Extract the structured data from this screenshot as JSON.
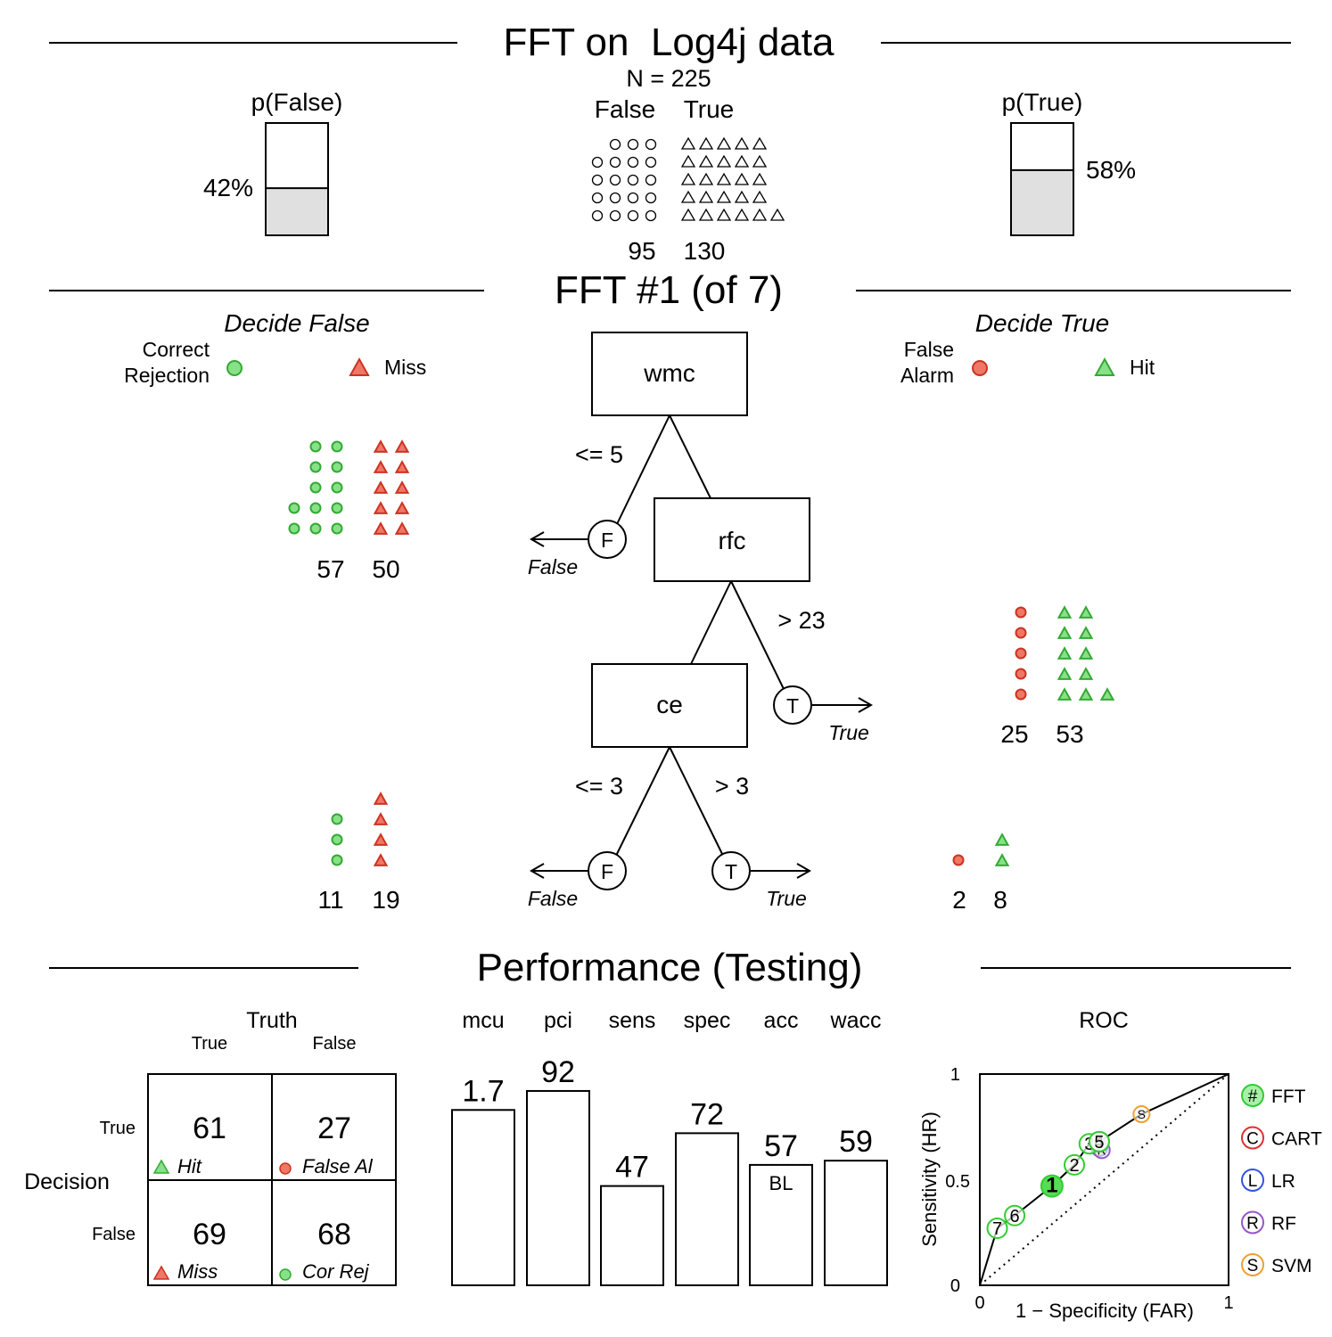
{
  "header": {
    "title": "FFT on  Log4j data",
    "n_label": "N = 225",
    "class_false_label": "False",
    "class_true_label": "True",
    "count_false": "95",
    "count_true": "130",
    "p_false_label": "p(False)",
    "p_false_pct": "42%",
    "p_false_value": 0.42,
    "p_true_label": "p(True)",
    "p_true_pct": "58%",
    "p_true_value": 0.58,
    "icon_false": "circle-icon",
    "icon_true": "triangle-icon"
  },
  "tree": {
    "title": "FFT #1 (of 7)",
    "decide_false_label": "Decide False",
    "decide_true_label": "Decide True",
    "legend": {
      "correct_rejection": "Correct\nRejection",
      "miss": "Miss",
      "false_alarm": "False\nAlarm",
      "hit": "Hit"
    },
    "nodes": [
      {
        "name": "wmc",
        "cond_false": "<= 5",
        "cond_true": ""
      },
      {
        "name": "rfc",
        "cond_false": "",
        "cond_true": "> 23"
      },
      {
        "name": "ce",
        "cond_false": "<= 3",
        "cond_true": "> 3"
      }
    ],
    "exit_letter_false": "F",
    "exit_letter_true": "T",
    "exit_label_false": "False",
    "exit_label_true": "True",
    "exit_counts": [
      {
        "level": 1,
        "side": "false",
        "left": "57",
        "right": "50",
        "cr": 57,
        "miss": 50
      },
      {
        "level": 2,
        "side": "true",
        "left": "25",
        "right": "53",
        "fa": 25,
        "hit": 53
      },
      {
        "level": 3,
        "side": "false",
        "left": "11",
        "right": "19",
        "cr": 11,
        "miss": 19
      },
      {
        "level": 3,
        "side": "true",
        "left": "2",
        "right": "8",
        "fa": 2,
        "hit": 8
      }
    ]
  },
  "performance": {
    "title": "Performance (Testing)",
    "confusion": {
      "truth_label": "Truth",
      "truth_true": "True",
      "truth_false": "False",
      "decision_label": "Decision",
      "decision_true": "True",
      "decision_false": "False",
      "hit": "61",
      "hit_label": "Hit",
      "fa": "27",
      "fa_label": "False Al",
      "miss": "69",
      "miss_label": "Miss",
      "cr": "68",
      "cr_label": "Cor Rej"
    },
    "baseline_label": "BL",
    "roc": {
      "title": "ROC",
      "xlabel": "1 − Specificity (FAR)",
      "ylabel": "Sensitivity (HR)",
      "x_ticks": [
        "0",
        "1"
      ],
      "y_ticks": [
        "0",
        "0.5",
        "1"
      ],
      "legend": [
        {
          "symbol": "#",
          "name": "FFT",
          "color": "#33cc33"
        },
        {
          "symbol": "C",
          "name": "CART",
          "color": "#e03030"
        },
        {
          "symbol": "L",
          "name": "LR",
          "color": "#3355dd"
        },
        {
          "symbol": "R",
          "name": "RF",
          "color": "#9955cc"
        },
        {
          "symbol": "S",
          "name": "SVM",
          "color": "#f0a030"
        }
      ]
    }
  },
  "chart_data": [
    {
      "type": "bar",
      "title": "Performance (Testing)",
      "categories": [
        "mcu",
        "pci",
        "sens",
        "spec",
        "acc",
        "wacc"
      ],
      "values": [
        1.7,
        92,
        47,
        72,
        57,
        59
      ],
      "value_labels": [
        "1.7",
        "92",
        "47",
        "72",
        "57",
        "59"
      ],
      "ylim": [
        0,
        100
      ]
    },
    {
      "type": "scatter",
      "title": "ROC",
      "xlabel": "1 − Specificity (FAR)",
      "ylabel": "Sensitivity (HR)",
      "xlim": [
        0,
        1
      ],
      "ylim": [
        0,
        1
      ],
      "series": [
        {
          "name": "FFT",
          "points": [
            {
              "label": "7",
              "x": 0.07,
              "y": 0.27
            },
            {
              "label": "6",
              "x": 0.14,
              "y": 0.33
            },
            {
              "label": "1",
              "x": 0.29,
              "y": 0.47
            },
            {
              "label": "2",
              "x": 0.38,
              "y": 0.57
            },
            {
              "label": "3",
              "x": 0.44,
              "y": 0.67
            },
            {
              "label": "4",
              "x": 0.48,
              "y": 0.68
            },
            {
              "label": "5",
              "x": 0.48,
              "y": 0.68
            }
          ]
        },
        {
          "name": "CART",
          "points": [
            {
              "label": "C",
              "x": 0.48,
              "y": 0.66
            }
          ]
        },
        {
          "name": "LR",
          "points": [
            {
              "label": "L",
              "x": 0.48,
              "y": 0.65
            }
          ]
        },
        {
          "name": "RF",
          "points": [
            {
              "label": "R",
              "x": 0.49,
              "y": 0.64
            }
          ]
        },
        {
          "name": "SVM",
          "points": [
            {
              "label": "S",
              "x": 0.65,
              "y": 0.81
            }
          ]
        }
      ]
    }
  ]
}
